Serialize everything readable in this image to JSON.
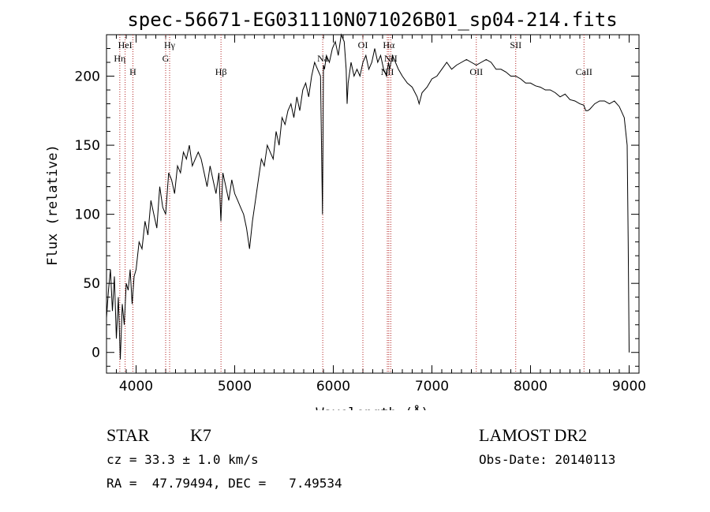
{
  "chart_data": {
    "type": "line",
    "title": "spec-56671-EG031110N071026B01_sp04-214.fits",
    "xlabel": "Wavelength (Å)",
    "ylabel": "Flux (relative)",
    "xlim": [
      3700,
      9100
    ],
    "ylim": [
      -15,
      230
    ],
    "xticks": [
      "4000",
      "5000",
      "6000",
      "7000",
      "8000",
      "9000"
    ],
    "yticks": [
      "0",
      "50",
      "100",
      "150",
      "200"
    ],
    "grid": false,
    "series": [
      {
        "x": [
          3700,
          3720,
          3740,
          3760,
          3780,
          3800,
          3820,
          3840,
          3860,
          3880,
          3900,
          3920,
          3940,
          3960,
          3980,
          4000,
          4030,
          4060,
          4090,
          4120,
          4150,
          4180,
          4210,
          4240,
          4270,
          4300,
          4330,
          4360,
          4390,
          4420,
          4450,
          4480,
          4510,
          4540,
          4570,
          4600,
          4630,
          4660,
          4690,
          4720,
          4750,
          4780,
          4810,
          4840,
          4860,
          4880,
          4910,
          4940,
          4970,
          5000,
          5030,
          5060,
          5090,
          5120,
          5150,
          5180,
          5210,
          5240,
          5270,
          5300,
          5330,
          5360,
          5390,
          5420,
          5450,
          5480,
          5510,
          5540,
          5570,
          5600,
          5630,
          5660,
          5690,
          5720,
          5750,
          5780,
          5810,
          5840,
          5870,
          5890,
          5895,
          5900,
          5910,
          5930,
          5960,
          5990,
          6020,
          6050,
          6080,
          6110,
          6130,
          6140,
          6150,
          6180,
          6210,
          6240,
          6270,
          6300,
          6330,
          6360,
          6390,
          6420,
          6450,
          6480,
          6510,
          6540,
          6560,
          6570,
          6600,
          6630,
          6660,
          6700,
          6750,
          6800,
          6850,
          6870,
          6900,
          6950,
          7000,
          7050,
          7100,
          7150,
          7200,
          7250,
          7300,
          7350,
          7400,
          7450,
          7500,
          7550,
          7600,
          7650,
          7700,
          7750,
          7800,
          7850,
          7900,
          7950,
          8000,
          8050,
          8100,
          8150,
          8200,
          8250,
          8300,
          8350,
          8400,
          8450,
          8500,
          8540,
          8560,
          8580,
          8600,
          8650,
          8700,
          8750,
          8800,
          8850,
          8900,
          8950,
          8980,
          8990,
          9000
        ],
        "y": [
          25,
          45,
          60,
          30,
          55,
          10,
          40,
          -5,
          35,
          20,
          50,
          45,
          60,
          35,
          55,
          60,
          80,
          75,
          95,
          85,
          110,
          100,
          90,
          120,
          105,
          100,
          130,
          125,
          115,
          135,
          130,
          145,
          140,
          150,
          135,
          140,
          145,
          140,
          130,
          120,
          135,
          125,
          115,
          130,
          95,
          130,
          120,
          110,
          125,
          115,
          110,
          105,
          100,
          90,
          75,
          95,
          110,
          125,
          140,
          135,
          150,
          145,
          140,
          160,
          150,
          170,
          165,
          175,
          180,
          170,
          185,
          175,
          190,
          195,
          185,
          200,
          210,
          205,
          200,
          100,
          150,
          208,
          205,
          215,
          210,
          220,
          225,
          215,
          230,
          225,
          205,
          180,
          195,
          210,
          200,
          205,
          200,
          210,
          215,
          205,
          210,
          220,
          210,
          215,
          205,
          200,
          210,
          205,
          215,
          210,
          205,
          200,
          195,
          192,
          185,
          180,
          188,
          192,
          198,
          200,
          205,
          210,
          205,
          208,
          210,
          212,
          210,
          208,
          210,
          212,
          210,
          205,
          205,
          203,
          200,
          200,
          198,
          195,
          195,
          193,
          192,
          190,
          190,
          188,
          185,
          187,
          183,
          182,
          180,
          179,
          175,
          175,
          176,
          180,
          182,
          182,
          180,
          182,
          178,
          170,
          150,
          80,
          0
        ]
      }
    ],
    "lines": [
      {
        "x": 3835,
        "label": "Hη",
        "row": 2
      },
      {
        "x": 3889,
        "label": "HeI",
        "row": 1
      },
      {
        "x": 3968,
        "label": "H",
        "row": 3
      },
      {
        "x": 4300,
        "label": "G",
        "row": 2
      },
      {
        "x": 4340,
        "label": "Hγ",
        "row": 1
      },
      {
        "x": 4861,
        "label": "Hβ",
        "row": 3
      },
      {
        "x": 5893,
        "label": "Na",
        "row": 2
      },
      {
        "x": 6300,
        "label": "OI",
        "row": 1
      },
      {
        "x": 6548,
        "label": "NII",
        "row": 3
      },
      {
        "x": 6563,
        "label": "Hα",
        "row": 1
      },
      {
        "x": 6583,
        "label": "NII",
        "row": 2
      },
      {
        "x": 7450,
        "label": "OII",
        "row": 3
      },
      {
        "x": 7850,
        "label": "SII",
        "row": 1
      },
      {
        "x": 8542,
        "label": "CaII",
        "row": 3
      }
    ]
  },
  "info": {
    "class": "STAR",
    "subclass": "K7",
    "survey": "LAMOST DR2",
    "cz": "cz = 33.3 ± 1.0 km/s",
    "obs_date": "Obs-Date: 20140113",
    "radec": "RA =  47.79494, DEC =   7.49534"
  },
  "colors": {
    "axis": "#000000",
    "spectrum": "#000000",
    "line_markers": "#b22222"
  }
}
